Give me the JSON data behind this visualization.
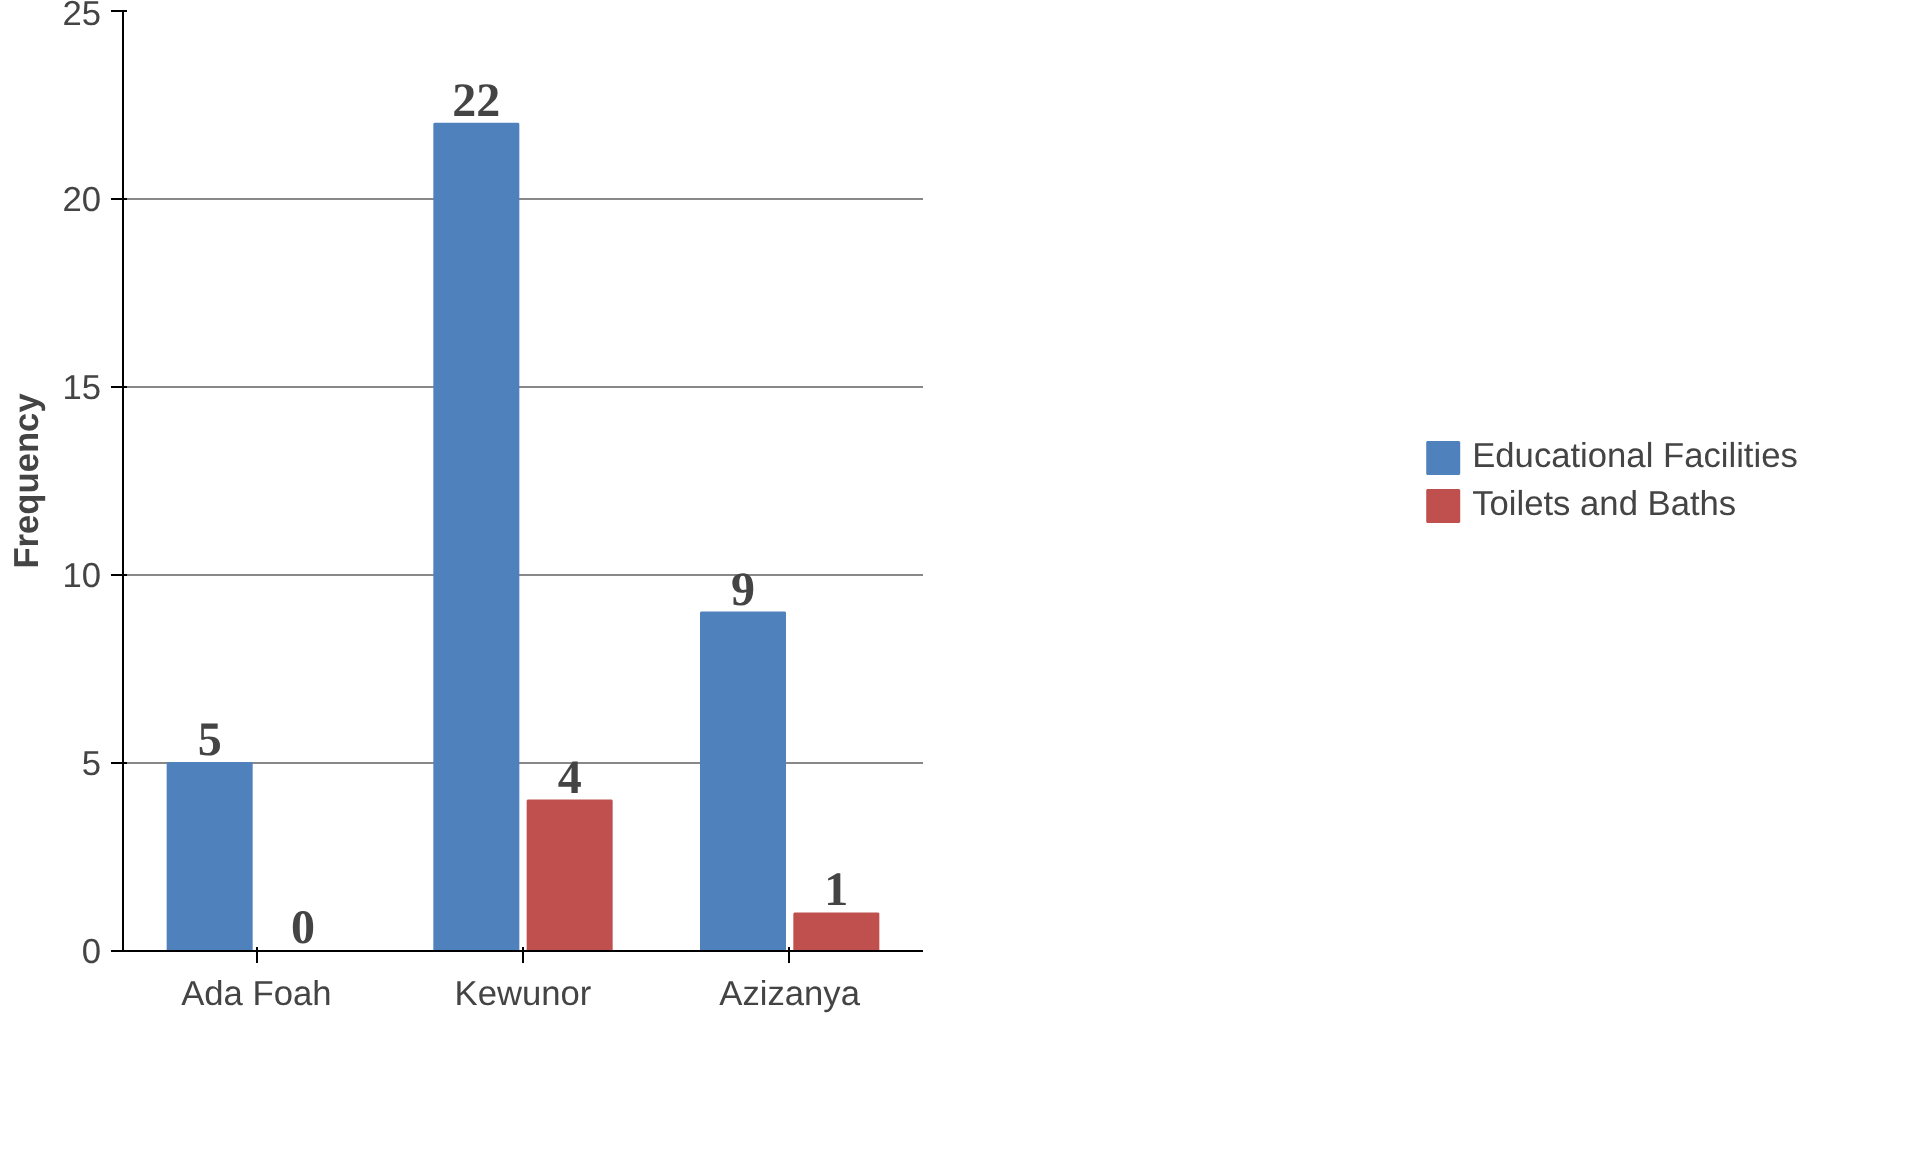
{
  "chart_data": {
    "type": "bar",
    "ylabel": "Frequency",
    "categories": [
      "Ada Foah",
      "Kewunor",
      "Azizanya"
    ],
    "series": [
      {
        "name": "Educational Facilities",
        "color": "#4f81bd",
        "values": [
          5,
          22,
          9
        ]
      },
      {
        "name": "Toilets and Baths",
        "color": "#c0504d",
        "values": [
          0,
          4,
          1
        ]
      }
    ],
    "ylim": [
      0,
      25
    ],
    "yticks": [
      0,
      5,
      10,
      15,
      20,
      25
    ],
    "grid": "y",
    "legend": "right",
    "data_labels": true
  }
}
